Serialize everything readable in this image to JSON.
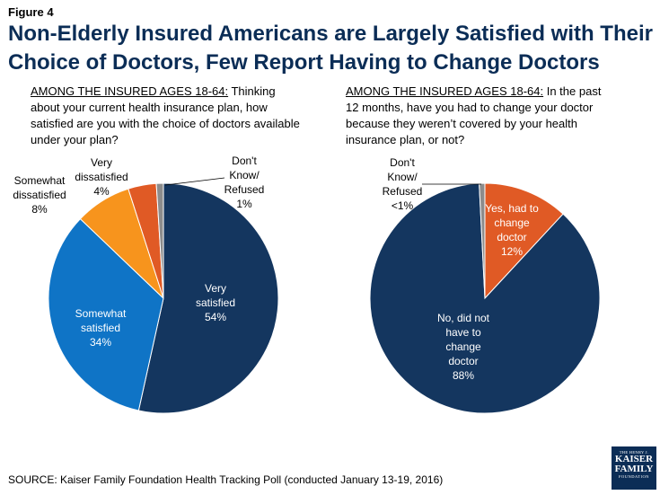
{
  "figure_label": "Figure 4",
  "title": "Non-Elderly Insured Americans are Largely Satisfied with Their Choice of Doctors, Few Report Having to Change Doctors",
  "source": "SOURCE: Kaiser Family Foundation Health Tracking Poll (conducted January 13-19, 2016)",
  "logo": {
    "line1": "THE HENRY J.",
    "line2": "KAISER",
    "line3": "FAMILY",
    "line4": "FOUNDATION"
  },
  "colors": {
    "very_satisfied": "#14365f",
    "somewhat_satisfied": "#0f74c6",
    "somewhat_dissatisfied": "#f7941d",
    "very_dissatisfied": "#e05a25",
    "dont_know": "#8c8c8c",
    "no_change": "#14365f",
    "yes_change": "#e05a25"
  },
  "chart_data": [
    {
      "type": "pie",
      "question_prefix": "AMONG THE INSURED AGES 18-64:",
      "question": " Thinking about your current health insurance plan, how satisfied are you with the choice of doctors available under your plan?",
      "slices": [
        {
          "label": "Very satisfied",
          "value": 54,
          "display": "54%",
          "color": "#14365f"
        },
        {
          "label": "Somewhat satisfied",
          "value": 34,
          "display": "34%",
          "color": "#0f74c6"
        },
        {
          "label": "Somewhat dissatisfied",
          "value": 8,
          "display": "8%",
          "color": "#f7941d"
        },
        {
          "label": "Very dissatisfied",
          "value": 4,
          "display": "4%",
          "color": "#e05a25"
        },
        {
          "label": "Don't Know/ Refused",
          "value": 1,
          "display": "1%",
          "color": "#8c8c8c"
        }
      ]
    },
    {
      "type": "pie",
      "question_prefix": "AMONG THE INSURED AGES 18-64:",
      "question": " In the past 12 months, have you had to change your doctor because they weren’t covered by your health insurance plan, or not?",
      "slices": [
        {
          "label": "Yes, had to change doctor",
          "value": 12,
          "display": "12%",
          "color": "#e05a25"
        },
        {
          "label": "No, did not have to change doctor",
          "value": 88,
          "display": "88%",
          "color": "#14365f"
        },
        {
          "label": "Don't Know/ Refused",
          "value": 0.8,
          "display": "<1%",
          "color": "#8c8c8c"
        }
      ]
    }
  ]
}
